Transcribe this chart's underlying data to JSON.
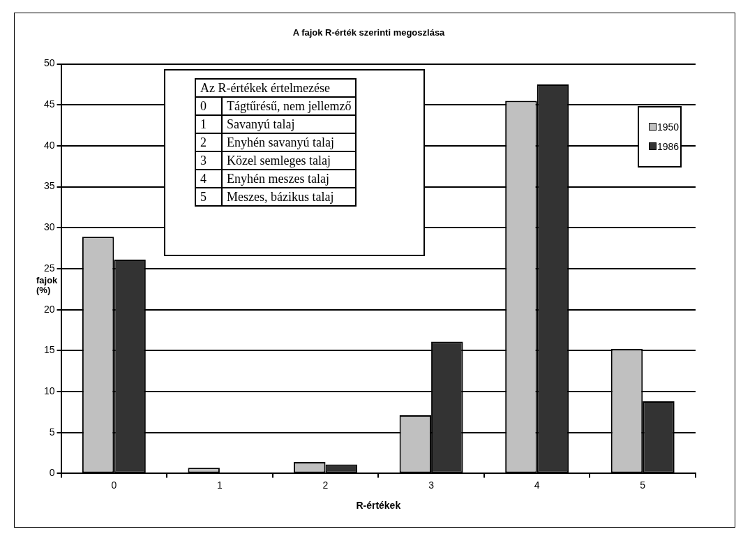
{
  "chart_data": {
    "type": "bar",
    "title": "A fajok R-érték szerinti megoszlása",
    "xlabel": "R-értékek",
    "ylabel": "fajok (%)",
    "categories": [
      "0",
      "1",
      "2",
      "3",
      "4",
      "5"
    ],
    "series": [
      {
        "name": "1950",
        "color": "#c0c0c0",
        "values": [
          28.9,
          0.7,
          1.4,
          7.1,
          45.5,
          15.2
        ]
      },
      {
        "name": "1986",
        "color": "#333333",
        "values": [
          26.1,
          0,
          1.1,
          16.1,
          47.5,
          8.8
        ]
      }
    ],
    "ylim": [
      0,
      50
    ],
    "yticks": [
      0,
      5,
      10,
      15,
      20,
      25,
      30,
      35,
      40,
      45,
      50
    ],
    "grid": "y",
    "legend": "right",
    "annotations": [
      "Az R-értékek értelmezése",
      "0 Tágtűrésű, nem jellemző",
      "1 Savanyú talaj",
      "2 Enyhén savanyú talaj",
      "3 Közel semleges talaj",
      "4 Enyhén meszes talaj",
      "5 Meszes, bázikus talaj"
    ]
  }
}
